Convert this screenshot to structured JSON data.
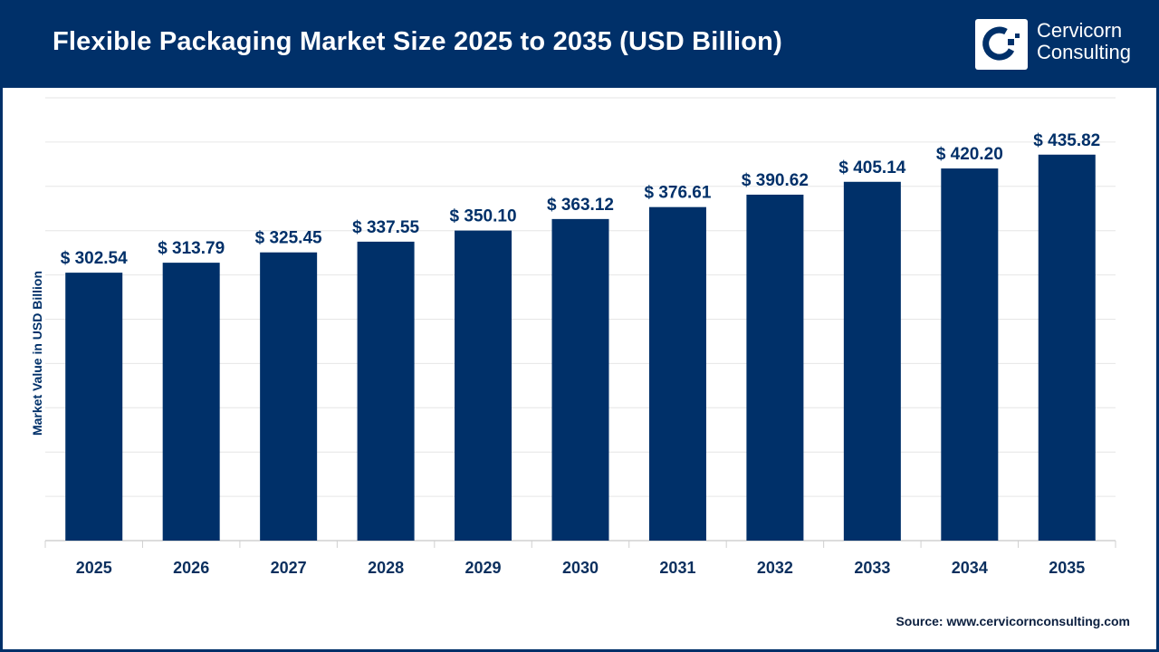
{
  "header": {
    "title": "Flexible Packaging Market Size 2025 to 2035 (USD Billion)",
    "logo_line1": "Cervicorn",
    "logo_line2": "Consulting"
  },
  "source": "Source: www.cervicornconsulting.com",
  "colors": {
    "bar": "#003069",
    "header": "#003069",
    "grid": "#e6e6e6"
  },
  "chart_data": {
    "type": "bar",
    "title": "Flexible Packaging Market Size 2025 to 2035 (USD Billion)",
    "xlabel": "",
    "ylabel": "Market Value in USD Billion",
    "categories": [
      "2025",
      "2026",
      "2027",
      "2028",
      "2029",
      "2030",
      "2031",
      "2032",
      "2033",
      "2034",
      "2035"
    ],
    "values": [
      302.54,
      313.79,
      325.45,
      337.55,
      350.1,
      363.12,
      376.61,
      390.62,
      405.14,
      420.2,
      435.82
    ],
    "data_labels": [
      "$ 302.54",
      "$ 313.79",
      "$ 325.45",
      "$ 337.55",
      "$ 350.10",
      "$ 363.12",
      "$ 376.61",
      "$ 390.62",
      "$ 405.14",
      "$ 420.20",
      "$ 435.82"
    ],
    "ylim": [
      0,
      500
    ],
    "grid": true,
    "legend": "none"
  }
}
